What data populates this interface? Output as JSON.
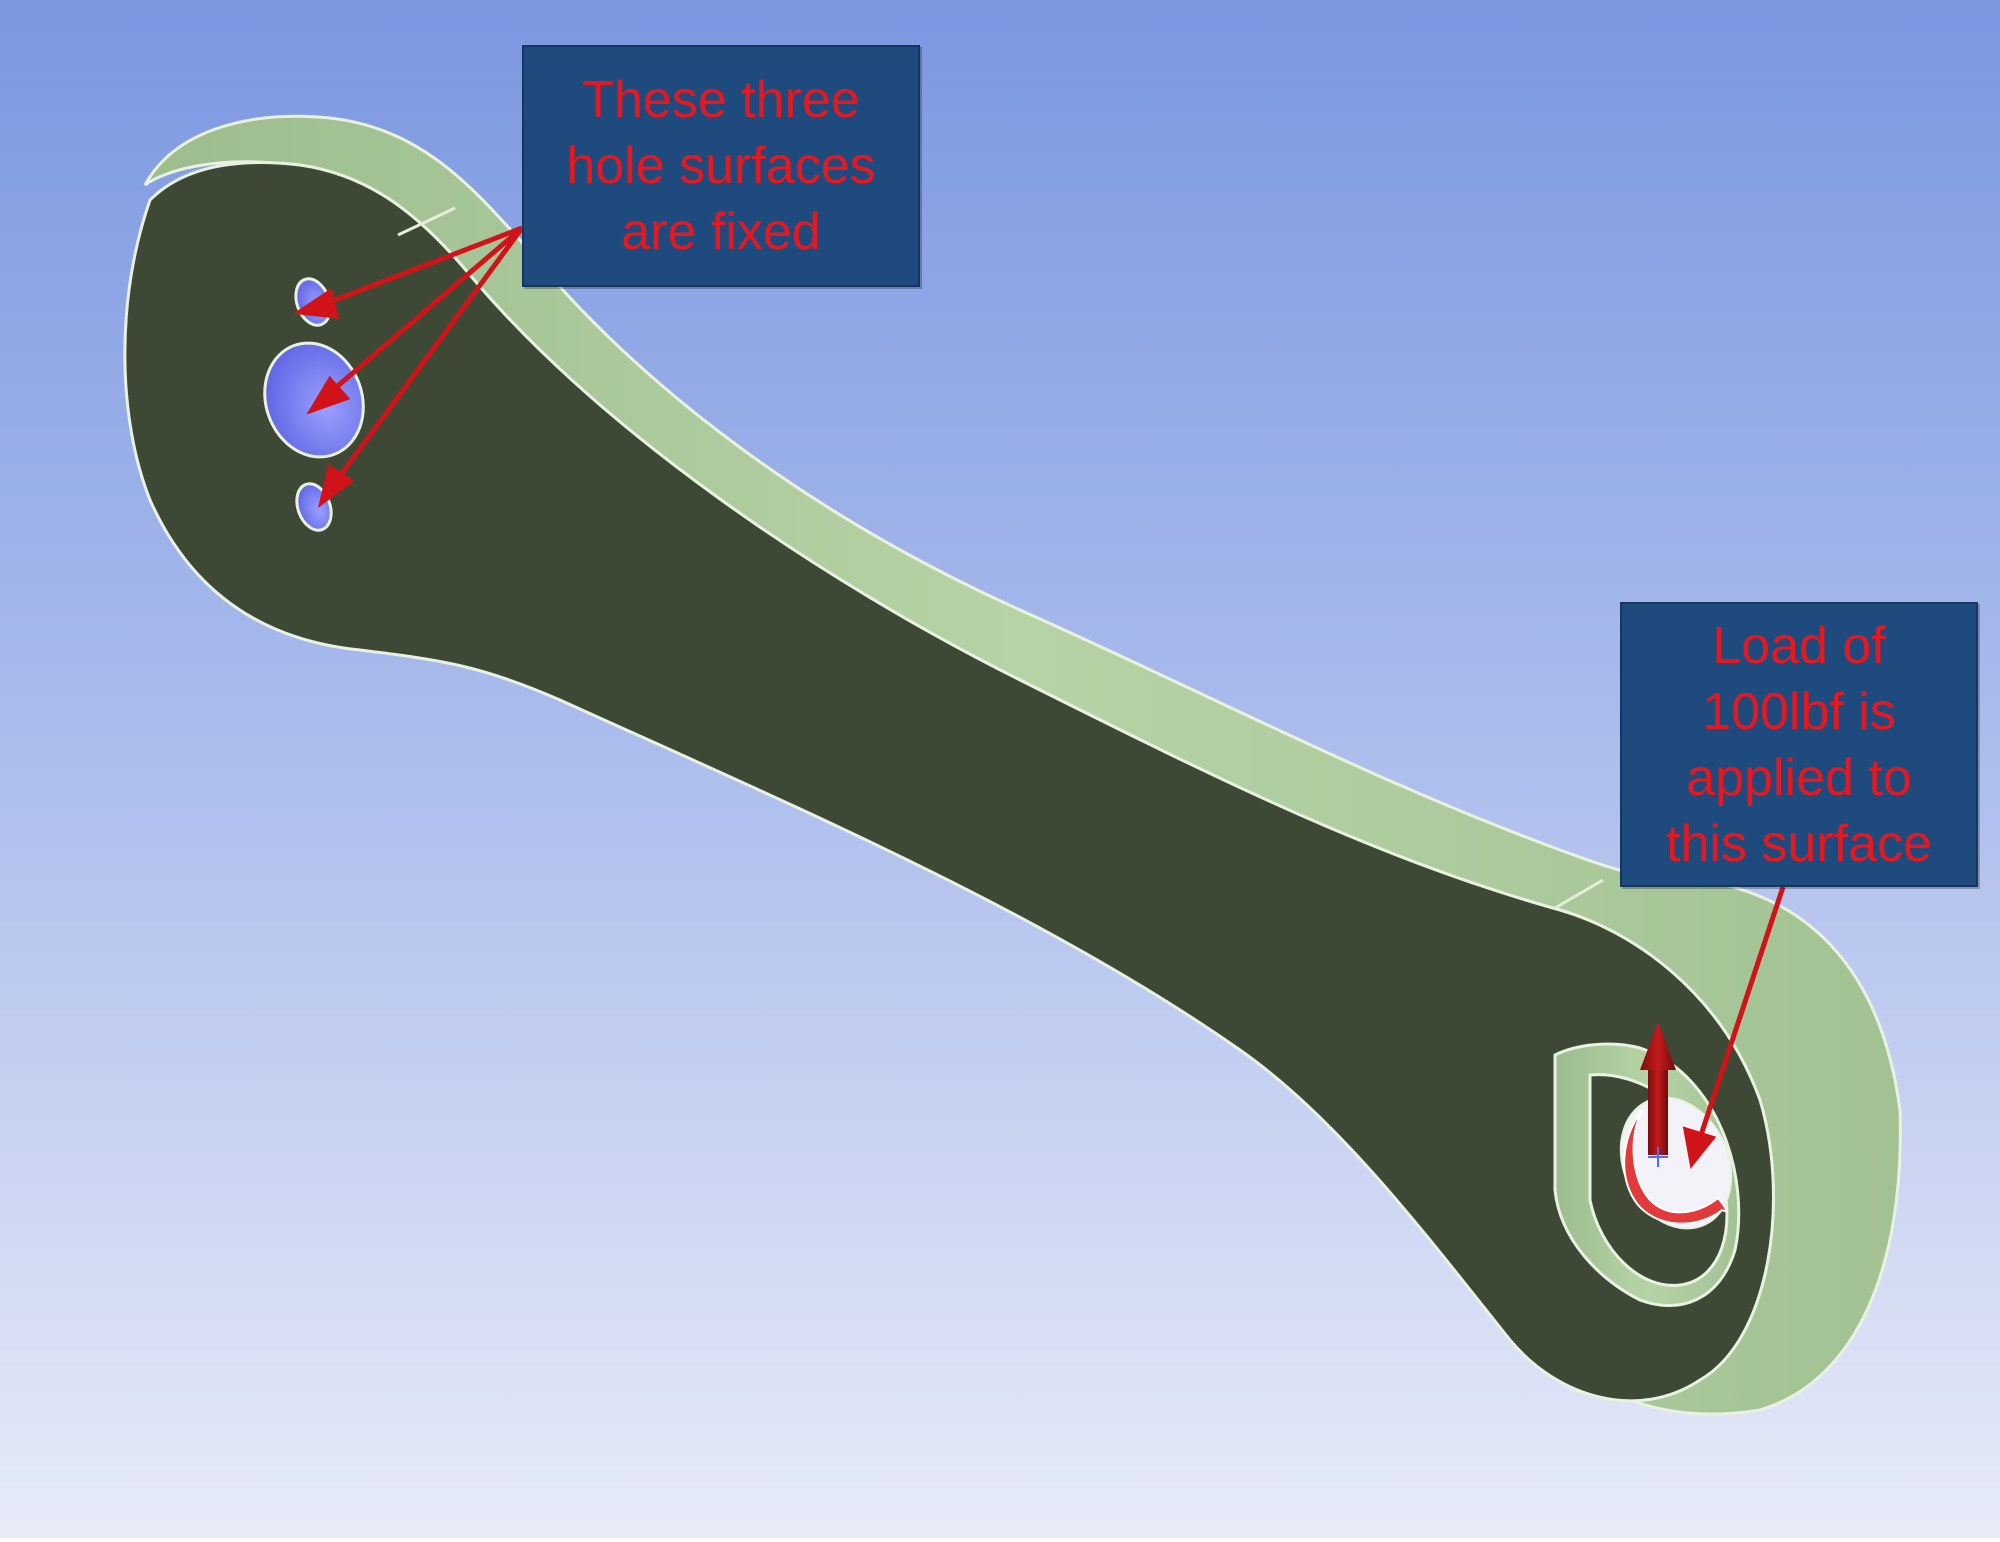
{
  "annotations": {
    "fixed_holes": {
      "lines": [
        "These three",
        "hole surfaces",
        "are fixed"
      ]
    },
    "load": {
      "lines": [
        "Load of",
        "100lbf is",
        "applied to",
        "this surface"
      ]
    }
  },
  "colors": {
    "background_top": "#7a97e1",
    "background_bottom": "#e8ecf8",
    "part_face": "#3d4935",
    "part_side": "#a9c79b",
    "fixed_surface": "#6e74f0",
    "load_surface": "#e23a3a",
    "callout_fill": "#1f4a7e",
    "callout_text": "#e4191f",
    "arrow": "#d01219"
  }
}
